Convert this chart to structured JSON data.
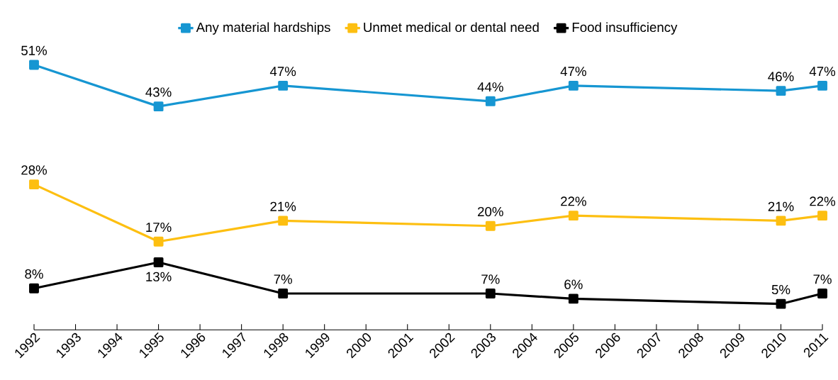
{
  "chart_data": {
    "type": "line",
    "x": [
      1992,
      1995,
      1998,
      2003,
      2005,
      2010,
      2011
    ],
    "xlim": [
      1992,
      2011
    ],
    "xticks": [
      1992,
      1993,
      1994,
      1995,
      1996,
      1997,
      1998,
      1999,
      2000,
      2001,
      2002,
      2003,
      2004,
      2005,
      2006,
      2007,
      2008,
      2009,
      2010,
      2011
    ],
    "series": [
      {
        "name": "Any material hardships",
        "color": "#1696d2",
        "values": [
          51,
          43,
          47,
          44,
          47,
          46,
          47
        ],
        "value_labels": [
          "51%",
          "43%",
          "47%",
          "44%",
          "47%",
          "46%",
          "47%"
        ]
      },
      {
        "name": "Unmet medical or dental need",
        "color": "#fdbf11",
        "values": [
          28,
          17,
          21,
          20,
          22,
          21,
          22
        ],
        "value_labels": [
          "28%",
          "17%",
          "21%",
          "20%",
          "22%",
          "21%",
          "22%"
        ]
      },
      {
        "name": "Food insufficiency",
        "color": "#000000",
        "values": [
          8,
          13,
          7,
          7,
          6,
          5,
          7
        ],
        "value_labels": [
          "8%",
          "13%",
          "7%",
          "7%",
          "6%",
          "5%",
          "7%"
        ]
      }
    ],
    "legend": "top",
    "marker": "square",
    "line_style": "solid",
    "grid": false
  }
}
